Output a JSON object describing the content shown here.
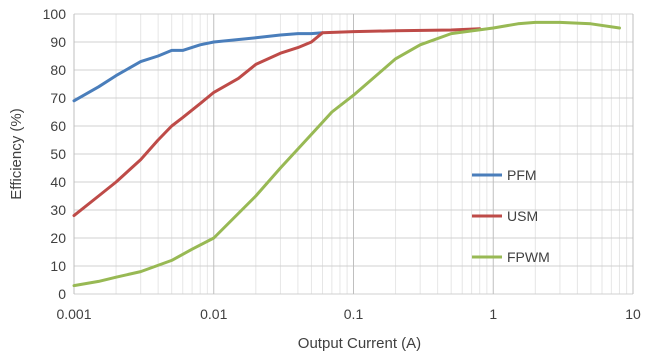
{
  "chart_data": {
    "type": "line",
    "title": "",
    "xlabel": "Output Current (A)",
    "ylabel": "Efficiency (%)",
    "x_scale": "log",
    "xlim": [
      0.001,
      10
    ],
    "ylim": [
      0,
      100
    ],
    "x_ticks": [
      {
        "value": 0.001,
        "label": "0.001"
      },
      {
        "value": 0.01,
        "label": "0.01"
      },
      {
        "value": 0.1,
        "label": "0.1"
      },
      {
        "value": 1,
        "label": "1"
      },
      {
        "value": 10,
        "label": "10"
      }
    ],
    "y_ticks": [
      {
        "value": 0,
        "label": "0"
      },
      {
        "value": 10,
        "label": "10"
      },
      {
        "value": 20,
        "label": "20"
      },
      {
        "value": 30,
        "label": "30"
      },
      {
        "value": 40,
        "label": "40"
      },
      {
        "value": 50,
        "label": "50"
      },
      {
        "value": 60,
        "label": "60"
      },
      {
        "value": 70,
        "label": "70"
      },
      {
        "value": 80,
        "label": "80"
      },
      {
        "value": 90,
        "label": "90"
      },
      {
        "value": 100,
        "label": "100"
      }
    ],
    "grid": {
      "major": true,
      "minor_x": true
    },
    "legend_position": "right",
    "series": [
      {
        "name": "PFM",
        "color": "#4a7ebb",
        "points": [
          [
            0.001,
            69
          ],
          [
            0.0015,
            74
          ],
          [
            0.002,
            78
          ],
          [
            0.003,
            83
          ],
          [
            0.004,
            85
          ],
          [
            0.005,
            87
          ],
          [
            0.006,
            87
          ],
          [
            0.008,
            89
          ],
          [
            0.01,
            90
          ],
          [
            0.02,
            91.5
          ],
          [
            0.03,
            92.5
          ],
          [
            0.04,
            93
          ],
          [
            0.05,
            93
          ],
          [
            0.06,
            93.3
          ]
        ]
      },
      {
        "name": "USM",
        "color": "#be4b48",
        "points": [
          [
            0.001,
            28
          ],
          [
            0.0015,
            35
          ],
          [
            0.002,
            40
          ],
          [
            0.003,
            48
          ],
          [
            0.004,
            55
          ],
          [
            0.005,
            60
          ],
          [
            0.006,
            63
          ],
          [
            0.008,
            68
          ],
          [
            0.01,
            72
          ],
          [
            0.015,
            77
          ],
          [
            0.02,
            82
          ],
          [
            0.03,
            86
          ],
          [
            0.04,
            88
          ],
          [
            0.05,
            90
          ],
          [
            0.06,
            93.3
          ],
          [
            0.1,
            93.7
          ],
          [
            0.2,
            94
          ],
          [
            0.5,
            94.3
          ],
          [
            0.8,
            94.7
          ]
        ]
      },
      {
        "name": "FPWM",
        "color": "#98b954",
        "points": [
          [
            0.001,
            3
          ],
          [
            0.0015,
            4.5
          ],
          [
            0.002,
            6
          ],
          [
            0.003,
            8
          ],
          [
            0.005,
            12
          ],
          [
            0.007,
            16
          ],
          [
            0.01,
            20
          ],
          [
            0.02,
            35
          ],
          [
            0.03,
            45
          ],
          [
            0.05,
            57
          ],
          [
            0.07,
            65
          ],
          [
            0.1,
            71
          ],
          [
            0.2,
            84
          ],
          [
            0.3,
            89
          ],
          [
            0.5,
            93
          ],
          [
            1,
            95
          ],
          [
            1.5,
            96.5
          ],
          [
            2,
            97
          ],
          [
            3,
            97
          ],
          [
            5,
            96.5
          ],
          [
            8,
            95
          ]
        ]
      }
    ]
  }
}
